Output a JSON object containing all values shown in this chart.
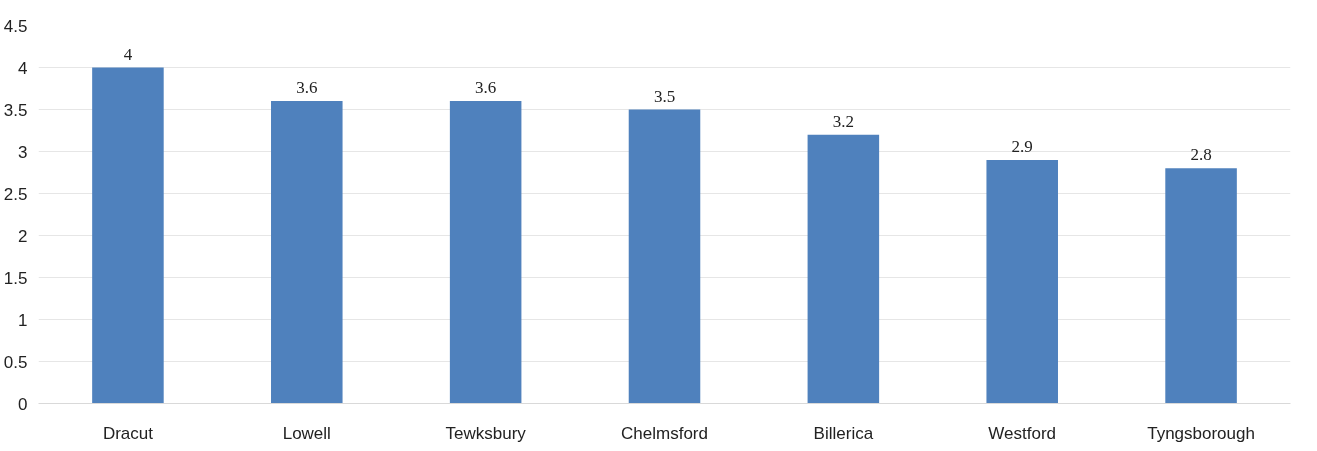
{
  "chart_data": {
    "type": "bar",
    "categories": [
      "Dracut",
      "Lowell",
      "Tewksbury",
      "Chelmsford",
      "Billerica",
      "Westford",
      "Tyngsborough"
    ],
    "values": [
      4,
      3.6,
      3.6,
      3.5,
      3.2,
      2.9,
      2.8
    ],
    "color": "#4f81bd",
    "ylim": [
      0,
      4.5
    ],
    "yticks": [
      0,
      0.5,
      1,
      1.5,
      2,
      2.5,
      3,
      3.5,
      4,
      4.5
    ],
    "grid": "y",
    "data_labels": true
  }
}
